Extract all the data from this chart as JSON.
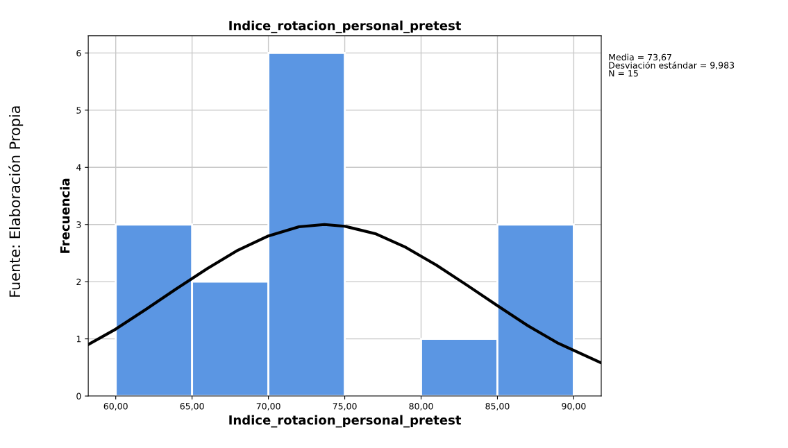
{
  "chart_data": {
    "type": "histogram",
    "title": "Indice_rotacion_personal_pretest",
    "xlabel": "Indice_rotacion_personal_pretest",
    "ylabel": "Frecuencia",
    "bins": [
      60,
      65,
      70,
      75,
      80,
      85,
      90
    ],
    "values": [
      3,
      2,
      6,
      0,
      1,
      3
    ],
    "color": "#5b96e3",
    "series": [
      {
        "type": "line",
        "color": "#000000",
        "x": [
          58.2,
          60,
          62,
          64,
          66,
          68,
          70,
          72,
          73.67,
          75,
          77,
          79,
          81,
          83,
          85,
          87,
          89,
          91.8
        ],
        "values": [
          0.9,
          1.17,
          1.52,
          1.88,
          2.23,
          2.55,
          2.8,
          2.96,
          3.0,
          2.97,
          2.84,
          2.6,
          2.29,
          1.94,
          1.58,
          1.23,
          0.92,
          0.58
        ]
      }
    ],
    "xlim": [
      58.2,
      91.8
    ],
    "ylim": [
      0,
      6.3
    ],
    "xticks": [
      {
        "value": 60,
        "label": "60,00"
      },
      {
        "value": 65,
        "label": "65,00"
      },
      {
        "value": 70,
        "label": "70,00"
      },
      {
        "value": 75,
        "label": "75,00"
      },
      {
        "value": 80,
        "label": "80,00"
      },
      {
        "value": 85,
        "label": "85,00"
      },
      {
        "value": 90,
        "label": "90,00"
      }
    ],
    "yticks": [
      0,
      1,
      2,
      3,
      4,
      5,
      6
    ],
    "grid": true,
    "legend": false,
    "annotations": [
      "Media = 73,67\nDesviación estándar = 9,983\nN = 15",
      "Fuente: Elaboración Propia"
    ]
  }
}
